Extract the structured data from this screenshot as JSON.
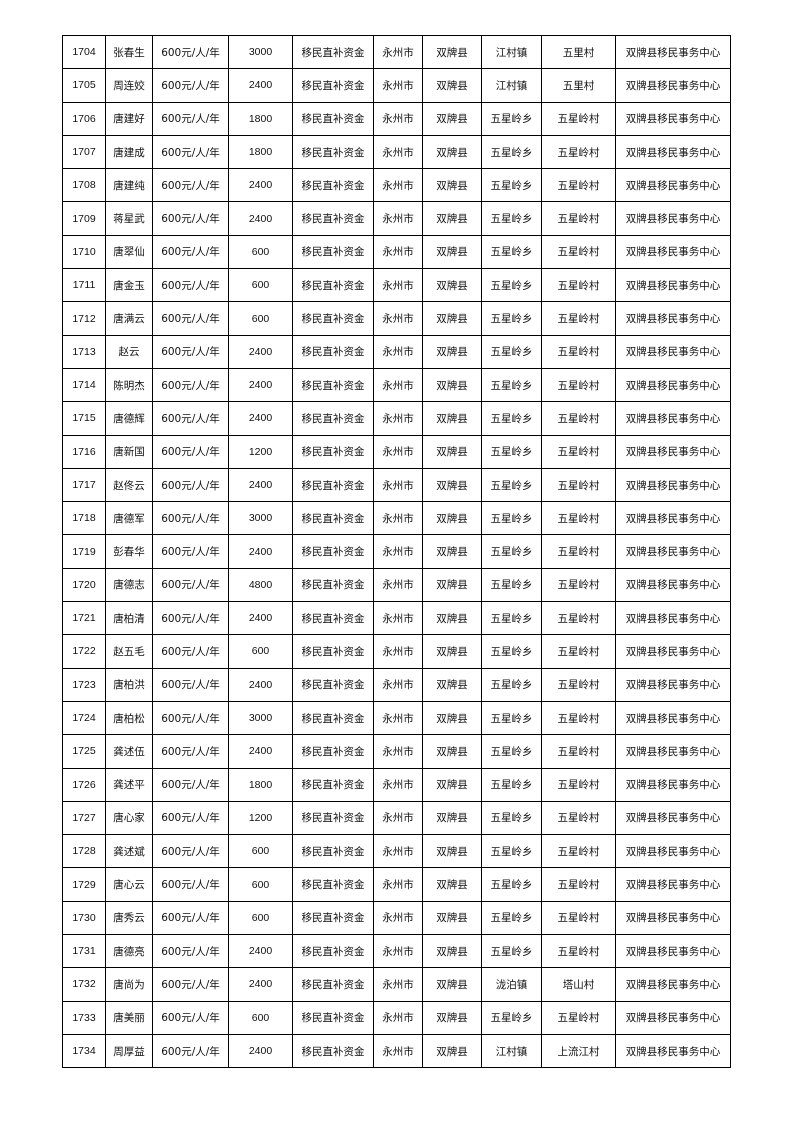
{
  "rows": [
    [
      "1704",
      "张春生",
      "600元/人/年",
      "3000",
      "移民直补资金",
      "永州市",
      "双牌县",
      "江村镇",
      "五里村",
      "双牌县移民事务中心"
    ],
    [
      "1705",
      "周连姣",
      "600元/人/年",
      "2400",
      "移民直补资金",
      "永州市",
      "双牌县",
      "江村镇",
      "五里村",
      "双牌县移民事务中心"
    ],
    [
      "1706",
      "唐建好",
      "600元/人/年",
      "1800",
      "移民直补资金",
      "永州市",
      "双牌县",
      "五星岭乡",
      "五星岭村",
      "双牌县移民事务中心"
    ],
    [
      "1707",
      "唐建成",
      "600元/人/年",
      "1800",
      "移民直补资金",
      "永州市",
      "双牌县",
      "五星岭乡",
      "五星岭村",
      "双牌县移民事务中心"
    ],
    [
      "1708",
      "唐建纯",
      "600元/人/年",
      "2400",
      "移民直补资金",
      "永州市",
      "双牌县",
      "五星岭乡",
      "五星岭村",
      "双牌县移民事务中心"
    ],
    [
      "1709",
      "蒋星武",
      "600元/人/年",
      "2400",
      "移民直补资金",
      "永州市",
      "双牌县",
      "五星岭乡",
      "五星岭村",
      "双牌县移民事务中心"
    ],
    [
      "1710",
      "唐翠仙",
      "600元/人/年",
      "600",
      "移民直补资金",
      "永州市",
      "双牌县",
      "五星岭乡",
      "五星岭村",
      "双牌县移民事务中心"
    ],
    [
      "1711",
      "唐金玉",
      "600元/人/年",
      "600",
      "移民直补资金",
      "永州市",
      "双牌县",
      "五星岭乡",
      "五星岭村",
      "双牌县移民事务中心"
    ],
    [
      "1712",
      "唐满云",
      "600元/人/年",
      "600",
      "移民直补资金",
      "永州市",
      "双牌县",
      "五星岭乡",
      "五星岭村",
      "双牌县移民事务中心"
    ],
    [
      "1713",
      "赵云",
      "600元/人/年",
      "2400",
      "移民直补资金",
      "永州市",
      "双牌县",
      "五星岭乡",
      "五星岭村",
      "双牌县移民事务中心"
    ],
    [
      "1714",
      "陈明杰",
      "600元/人/年",
      "2400",
      "移民直补资金",
      "永州市",
      "双牌县",
      "五星岭乡",
      "五星岭村",
      "双牌县移民事务中心"
    ],
    [
      "1715",
      "唐德辉",
      "600元/人/年",
      "2400",
      "移民直补资金",
      "永州市",
      "双牌县",
      "五星岭乡",
      "五星岭村",
      "双牌县移民事务中心"
    ],
    [
      "1716",
      "唐新国",
      "600元/人/年",
      "1200",
      "移民直补资金",
      "永州市",
      "双牌县",
      "五星岭乡",
      "五星岭村",
      "双牌县移民事务中心"
    ],
    [
      "1717",
      "赵佟云",
      "600元/人/年",
      "2400",
      "移民直补资金",
      "永州市",
      "双牌县",
      "五星岭乡",
      "五星岭村",
      "双牌县移民事务中心"
    ],
    [
      "1718",
      "唐德军",
      "600元/人/年",
      "3000",
      "移民直补资金",
      "永州市",
      "双牌县",
      "五星岭乡",
      "五星岭村",
      "双牌县移民事务中心"
    ],
    [
      "1719",
      "彭春华",
      "600元/人/年",
      "2400",
      "移民直补资金",
      "永州市",
      "双牌县",
      "五星岭乡",
      "五星岭村",
      "双牌县移民事务中心"
    ],
    [
      "1720",
      "唐德志",
      "600元/人/年",
      "4800",
      "移民直补资金",
      "永州市",
      "双牌县",
      "五星岭乡",
      "五星岭村",
      "双牌县移民事务中心"
    ],
    [
      "1721",
      "唐柏清",
      "600元/人/年",
      "2400",
      "移民直补资金",
      "永州市",
      "双牌县",
      "五星岭乡",
      "五星岭村",
      "双牌县移民事务中心"
    ],
    [
      "1722",
      "赵五毛",
      "600元/人/年",
      "600",
      "移民直补资金",
      "永州市",
      "双牌县",
      "五星岭乡",
      "五星岭村",
      "双牌县移民事务中心"
    ],
    [
      "1723",
      "唐柏洪",
      "600元/人/年",
      "2400",
      "移民直补资金",
      "永州市",
      "双牌县",
      "五星岭乡",
      "五星岭村",
      "双牌县移民事务中心"
    ],
    [
      "1724",
      "唐柏松",
      "600元/人/年",
      "3000",
      "移民直补资金",
      "永州市",
      "双牌县",
      "五星岭乡",
      "五星岭村",
      "双牌县移民事务中心"
    ],
    [
      "1725",
      "龚述伍",
      "600元/人/年",
      "2400",
      "移民直补资金",
      "永州市",
      "双牌县",
      "五星岭乡",
      "五星岭村",
      "双牌县移民事务中心"
    ],
    [
      "1726",
      "龚述平",
      "600元/人/年",
      "1800",
      "移民直补资金",
      "永州市",
      "双牌县",
      "五星岭乡",
      "五星岭村",
      "双牌县移民事务中心"
    ],
    [
      "1727",
      "唐心家",
      "600元/人/年",
      "1200",
      "移民直补资金",
      "永州市",
      "双牌县",
      "五星岭乡",
      "五星岭村",
      "双牌县移民事务中心"
    ],
    [
      "1728",
      "龚述斌",
      "600元/人/年",
      "600",
      "移民直补资金",
      "永州市",
      "双牌县",
      "五星岭乡",
      "五星岭村",
      "双牌县移民事务中心"
    ],
    [
      "1729",
      "唐心云",
      "600元/人/年",
      "600",
      "移民直补资金",
      "永州市",
      "双牌县",
      "五星岭乡",
      "五星岭村",
      "双牌县移民事务中心"
    ],
    [
      "1730",
      "唐秀云",
      "600元/人/年",
      "600",
      "移民直补资金",
      "永州市",
      "双牌县",
      "五星岭乡",
      "五星岭村",
      "双牌县移民事务中心"
    ],
    [
      "1731",
      "唐德亮",
      "600元/人/年",
      "2400",
      "移民直补资金",
      "永州市",
      "双牌县",
      "五星岭乡",
      "五星岭村",
      "双牌县移民事务中心"
    ],
    [
      "1732",
      "唐尚为",
      "600元/人/年",
      "2400",
      "移民直补资金",
      "永州市",
      "双牌县",
      "泷泊镇",
      "塔山村",
      "双牌县移民事务中心"
    ],
    [
      "1733",
      "唐美丽",
      "600元/人/年",
      "600",
      "移民直补资金",
      "永州市",
      "双牌县",
      "五星岭乡",
      "五星岭村",
      "双牌县移民事务中心"
    ],
    [
      "1734",
      "周厚益",
      "600元/人/年",
      "2400",
      "移民直补资金",
      "永州市",
      "双牌县",
      "江村镇",
      "上流江村",
      "双牌县移民事务中心"
    ]
  ]
}
